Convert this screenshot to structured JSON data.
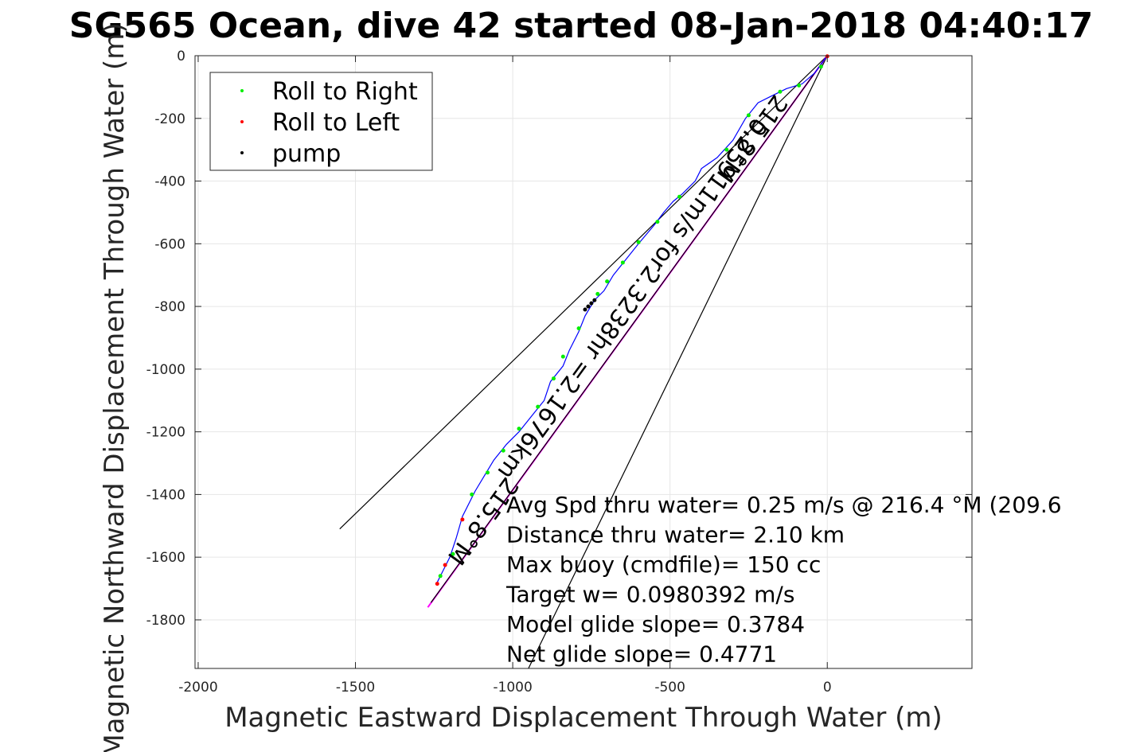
{
  "chart_data": {
    "type": "line",
    "title": "SG565 Ocean, dive 42 started 08-Jan-2018 04:40:17",
    "xlabel": "Magnetic Eastward Displacement Through Water (m)",
    "ylabel": "Magnetic Northward Displacement Through Water (m)",
    "xlim": [
      -2010,
      460
    ],
    "ylim": [
      -1955,
      0
    ],
    "xticks": [
      -2000,
      -1500,
      -1000,
      -500,
      0
    ],
    "yticks": [
      0,
      -200,
      -400,
      -600,
      -800,
      -1000,
      -1200,
      -1400,
      -1600,
      -1800
    ],
    "grid": true,
    "legend_position": "top-left",
    "legend": [
      {
        "name": "Roll to Right",
        "color": "#00ee00"
      },
      {
        "name": "Roll to Left",
        "color": "#ff0000"
      },
      {
        "name": "pump",
        "color": "#000000"
      }
    ],
    "track": [
      [
        0,
        0
      ],
      [
        -40,
        -55
      ],
      [
        -80,
        -90
      ],
      [
        -130,
        -105
      ],
      [
        -180,
        -130
      ],
      [
        -220,
        -150
      ],
      [
        -260,
        -200
      ],
      [
        -300,
        -270
      ],
      [
        -350,
        -325
      ],
      [
        -400,
        -360
      ],
      [
        -420,
        -400
      ],
      [
        -460,
        -440
      ],
      [
        -490,
        -465
      ],
      [
        -520,
        -500
      ],
      [
        -550,
        -540
      ],
      [
        -600,
        -600
      ],
      [
        -640,
        -650
      ],
      [
        -680,
        -700
      ],
      [
        -710,
        -750
      ],
      [
        -740,
        -780
      ],
      [
        -770,
        -830
      ],
      [
        -790,
        -880
      ],
      [
        -820,
        -940
      ],
      [
        -840,
        -990
      ],
      [
        -880,
        -1040
      ],
      [
        -900,
        -1100
      ],
      [
        -940,
        -1150
      ],
      [
        -980,
        -1200
      ],
      [
        -1020,
        -1240
      ],
      [
        -1060,
        -1290
      ],
      [
        -1090,
        -1340
      ],
      [
        -1120,
        -1390
      ],
      [
        -1160,
        -1470
      ],
      [
        -1180,
        -1540
      ],
      [
        -1200,
        -1600
      ],
      [
        -1220,
        -1640
      ],
      [
        -1240,
        -1680
      ]
    ],
    "roll_right_points": [
      [
        -20,
        -35
      ],
      [
        -90,
        -95
      ],
      [
        -150,
        -115
      ],
      [
        -250,
        -190
      ],
      [
        -320,
        -300
      ],
      [
        -470,
        -450
      ],
      [
        -540,
        -530
      ],
      [
        -600,
        -595
      ],
      [
        -650,
        -660
      ],
      [
        -700,
        -720
      ],
      [
        -730,
        -760
      ],
      [
        -790,
        -870
      ],
      [
        -840,
        -960
      ],
      [
        -870,
        -1030
      ],
      [
        -920,
        -1120
      ],
      [
        -980,
        -1190
      ],
      [
        -1030,
        -1260
      ],
      [
        -1080,
        -1330
      ],
      [
        -1130,
        -1400
      ],
      [
        -1190,
        -1590
      ],
      [
        -1230,
        -1660
      ]
    ],
    "roll_left_points": [
      [
        0,
        -2
      ],
      [
        -1160,
        -1480
      ],
      [
        -1215,
        -1625
      ],
      [
        -1240,
        -1685
      ]
    ],
    "pump_points": [
      [
        -760,
        -800
      ],
      [
        -750,
        -790
      ],
      [
        -740,
        -780
      ],
      [
        -770,
        -810
      ]
    ],
    "lines": [
      {
        "name": "heading-line-1",
        "color": "#000000",
        "x": [
          0,
          -1550
        ],
        "y": [
          0,
          -1510
        ]
      },
      {
        "name": "heading-line-2",
        "color": "#000000",
        "x": [
          0,
          -950
        ],
        "y": [
          0,
          -1955
        ]
      },
      {
        "name": "avg-velocity-line",
        "color": "#ff00ff",
        "x": [
          0,
          -1270
        ],
        "y": [
          0,
          -1760
        ]
      },
      {
        "name": "avg-velocity-line-dark",
        "color": "#000000",
        "x": [
          0,
          -1260
        ],
        "y": [
          0,
          -1745
        ]
      }
    ],
    "annotations": [
      {
        "text": "215.8°M",
        "x": -1115,
        "y": -1470,
        "angle": 126
      },
      {
        "text": "215.8°M",
        "x": -260,
        "y": -250,
        "angle": 126
      },
      {
        "text": "0.25911m/s for2.3238hr =2.1676km",
        "x": -640,
        "y": -760,
        "angle": 126
      }
    ],
    "info_lines": [
      "Avg Spd thru water=  0.25 m/s @ 216.4 °M (209.6",
      "Distance thru water=  2.10 km",
      "Max buoy (cmdfile)= 150 cc",
      "Target w= 0.0980392 m/s",
      "Model glide slope= 0.3784",
      "Net glide slope= 0.4771"
    ]
  },
  "colors": {
    "track": "#0000ff",
    "roll_right": "#00ee00",
    "roll_left": "#ff0000",
    "pump": "#000000",
    "grid": "#e6e6e6",
    "axis": "#262626"
  }
}
